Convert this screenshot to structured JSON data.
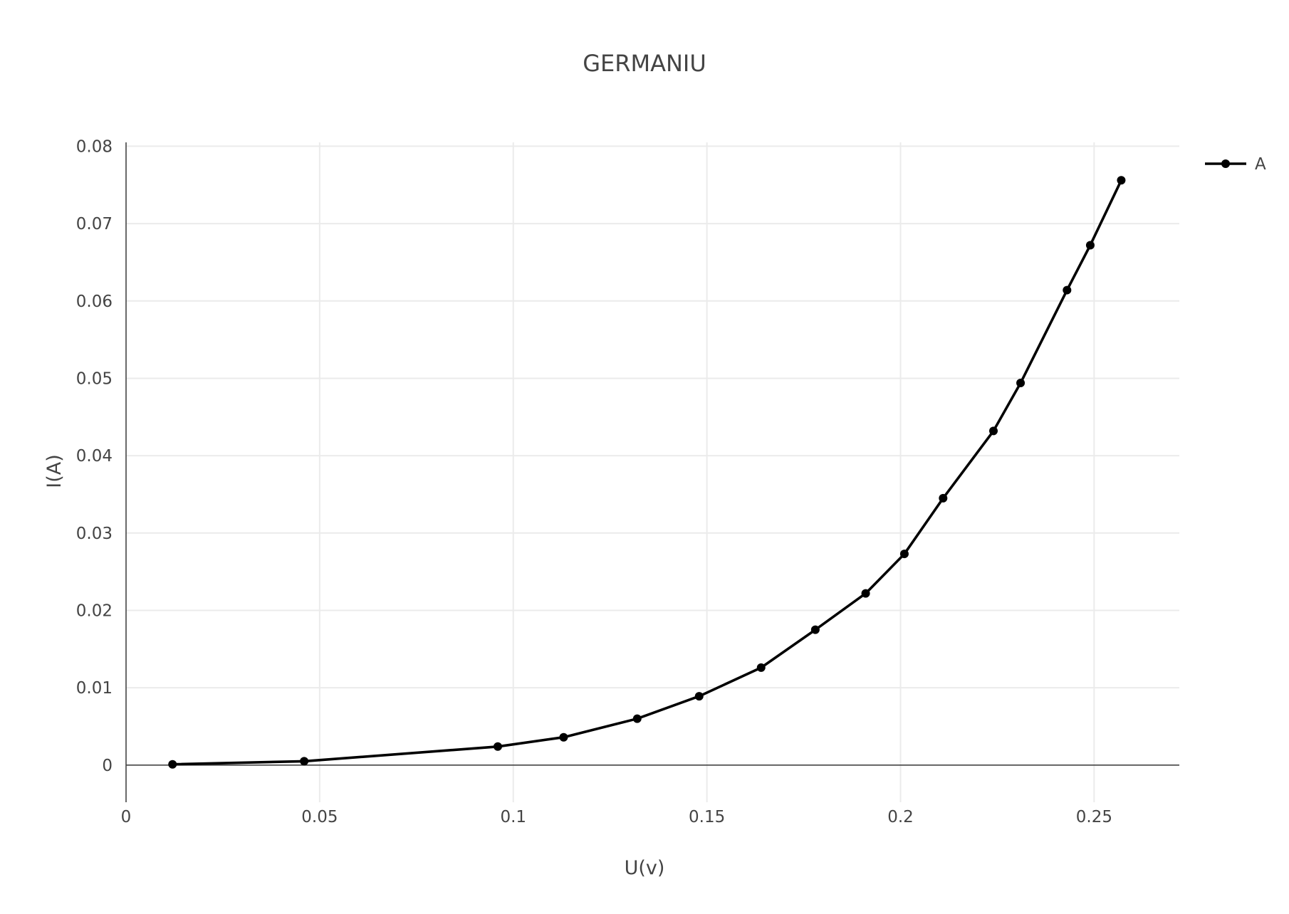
{
  "chart_data": {
    "type": "line",
    "title": "GERMANIU",
    "xlabel": "U(v)",
    "ylabel": "I(A)",
    "xlim": [
      0,
      0.272
    ],
    "ylim": [
      -0.0048,
      0.0805
    ],
    "grid": true,
    "legend_position": "top-right",
    "x_ticks": [
      0,
      0.05,
      0.1,
      0.15,
      0.2,
      0.25
    ],
    "x_tick_labels": [
      "0",
      "0.05",
      "0.1",
      "0.15",
      "0.2",
      "0.25"
    ],
    "y_ticks": [
      0,
      0.01,
      0.02,
      0.03,
      0.04,
      0.05,
      0.06,
      0.07,
      0.08
    ],
    "y_tick_labels": [
      "0",
      "0.01",
      "0.02",
      "0.03",
      "0.04",
      "0.05",
      "0.06",
      "0.07",
      "0.08"
    ],
    "series": [
      {
        "name": "A",
        "color": "#000000",
        "x": [
          0.012,
          0.046,
          0.096,
          0.113,
          0.132,
          0.148,
          0.164,
          0.178,
          0.191,
          0.201,
          0.211,
          0.224,
          0.231,
          0.243,
          0.249,
          0.257
        ],
        "y": [
          0.0001,
          0.0005,
          0.0024,
          0.0036,
          0.006,
          0.0089,
          0.0126,
          0.0175,
          0.0222,
          0.0273,
          0.0345,
          0.0432,
          0.0494,
          0.0614,
          0.0672,
          0.0756
        ]
      }
    ]
  }
}
